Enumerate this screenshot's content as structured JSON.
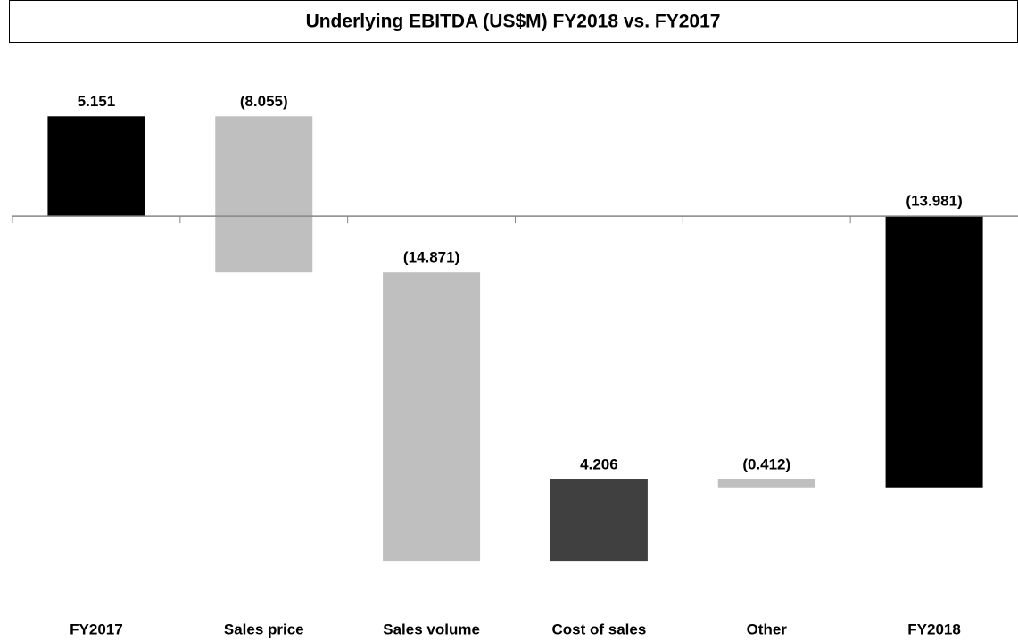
{
  "chart_data": {
    "type": "waterfall",
    "title": "Underlying EBITDA (US$M) FY2018 vs. FY2017",
    "categories": [
      "FY2017",
      "Sales price",
      "Sales volume",
      "Cost of sales",
      "Other",
      "FY2018"
    ],
    "values": [
      5.151,
      -8.055,
      -14.871,
      4.206,
      -0.412,
      -13.981
    ],
    "value_labels": [
      "5.151",
      "(8.055)",
      "(14.871)",
      "4.206",
      "(0.412)",
      "(13.981)"
    ],
    "is_total": [
      true,
      false,
      false,
      false,
      false,
      true
    ],
    "colors": {
      "total": "#000000",
      "increase": "#404040",
      "decrease": "#bfbfbf"
    },
    "ylim": [
      -18,
      6.5
    ]
  }
}
